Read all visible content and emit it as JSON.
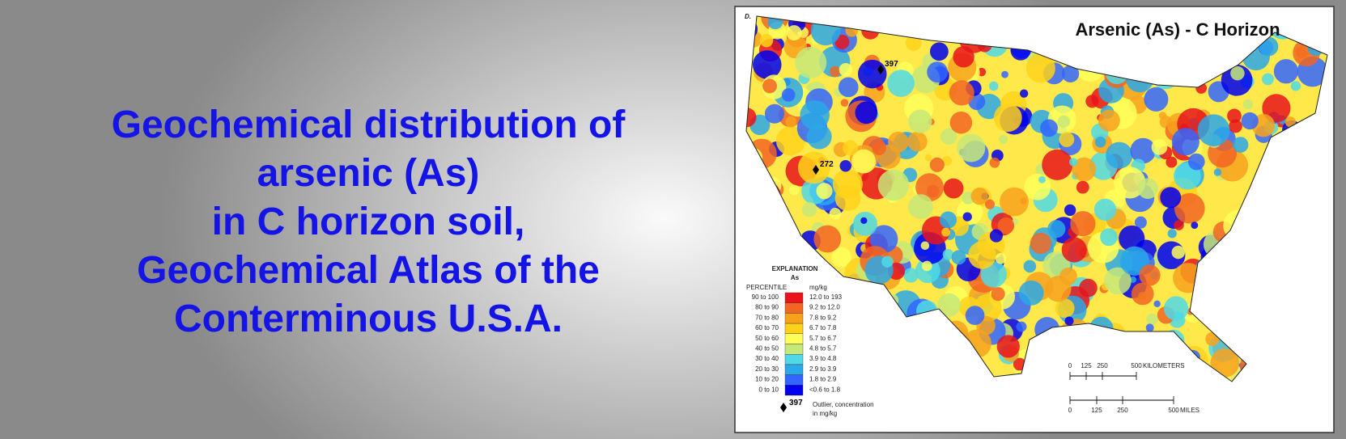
{
  "slide": {
    "title_lines": [
      "Geochemical distribution of",
      "arsenic (As)",
      "in C horizon soil,",
      "Geochemical Atlas of the",
      "Conterminous U.S.A."
    ]
  },
  "map": {
    "panel_label": "D.",
    "title": "Arsenic (As) - C Horizon",
    "outliers": [
      397,
      272
    ],
    "legend": {
      "heading": "EXPLANATION",
      "element": "As",
      "percentile_header": "PERCENTILE",
      "unit_header": "mg/kg",
      "rows": [
        {
          "percentile": "90 to 100",
          "range": "12.0 to 193",
          "color": "#e8141b"
        },
        {
          "percentile": "80 to 90",
          "range": "9.2 to 12.0",
          "color": "#f26522"
        },
        {
          "percentile": "70 to 80",
          "range": "7.8 to 9.2",
          "color": "#f7a21d"
        },
        {
          "percentile": "60 to 70",
          "range": "6.7 to 7.8",
          "color": "#ffd21a"
        },
        {
          "percentile": "50 to 60",
          "range": "5.7 to 6.7",
          "color": "#ffff5a"
        },
        {
          "percentile": "40 to 50",
          "range": "4.8 to 5.7",
          "color": "#c6e879"
        },
        {
          "percentile": "30 to 40",
          "range": "3.9 to 4.8",
          "color": "#4fd9e6"
        },
        {
          "percentile": "20 to 30",
          "range": "2.9 to 3.9",
          "color": "#2aa8e8"
        },
        {
          "percentile": "10 to 20",
          "range": "1.8 to 2.9",
          "color": "#3366ff"
        },
        {
          "percentile": "0 to 10",
          "range": "<0.6 to 1.8",
          "color": "#0000f0"
        }
      ],
      "outlier_symbol": 397,
      "outlier_text": [
        "Outlier, concentration",
        "in mg/kg"
      ]
    },
    "scale": {
      "km": {
        "ticks": [
          0,
          125,
          250,
          500
        ],
        "unit": "KILOMETERS"
      },
      "miles": {
        "ticks": [
          0,
          125,
          250,
          500
        ],
        "unit": "MILES"
      }
    }
  }
}
